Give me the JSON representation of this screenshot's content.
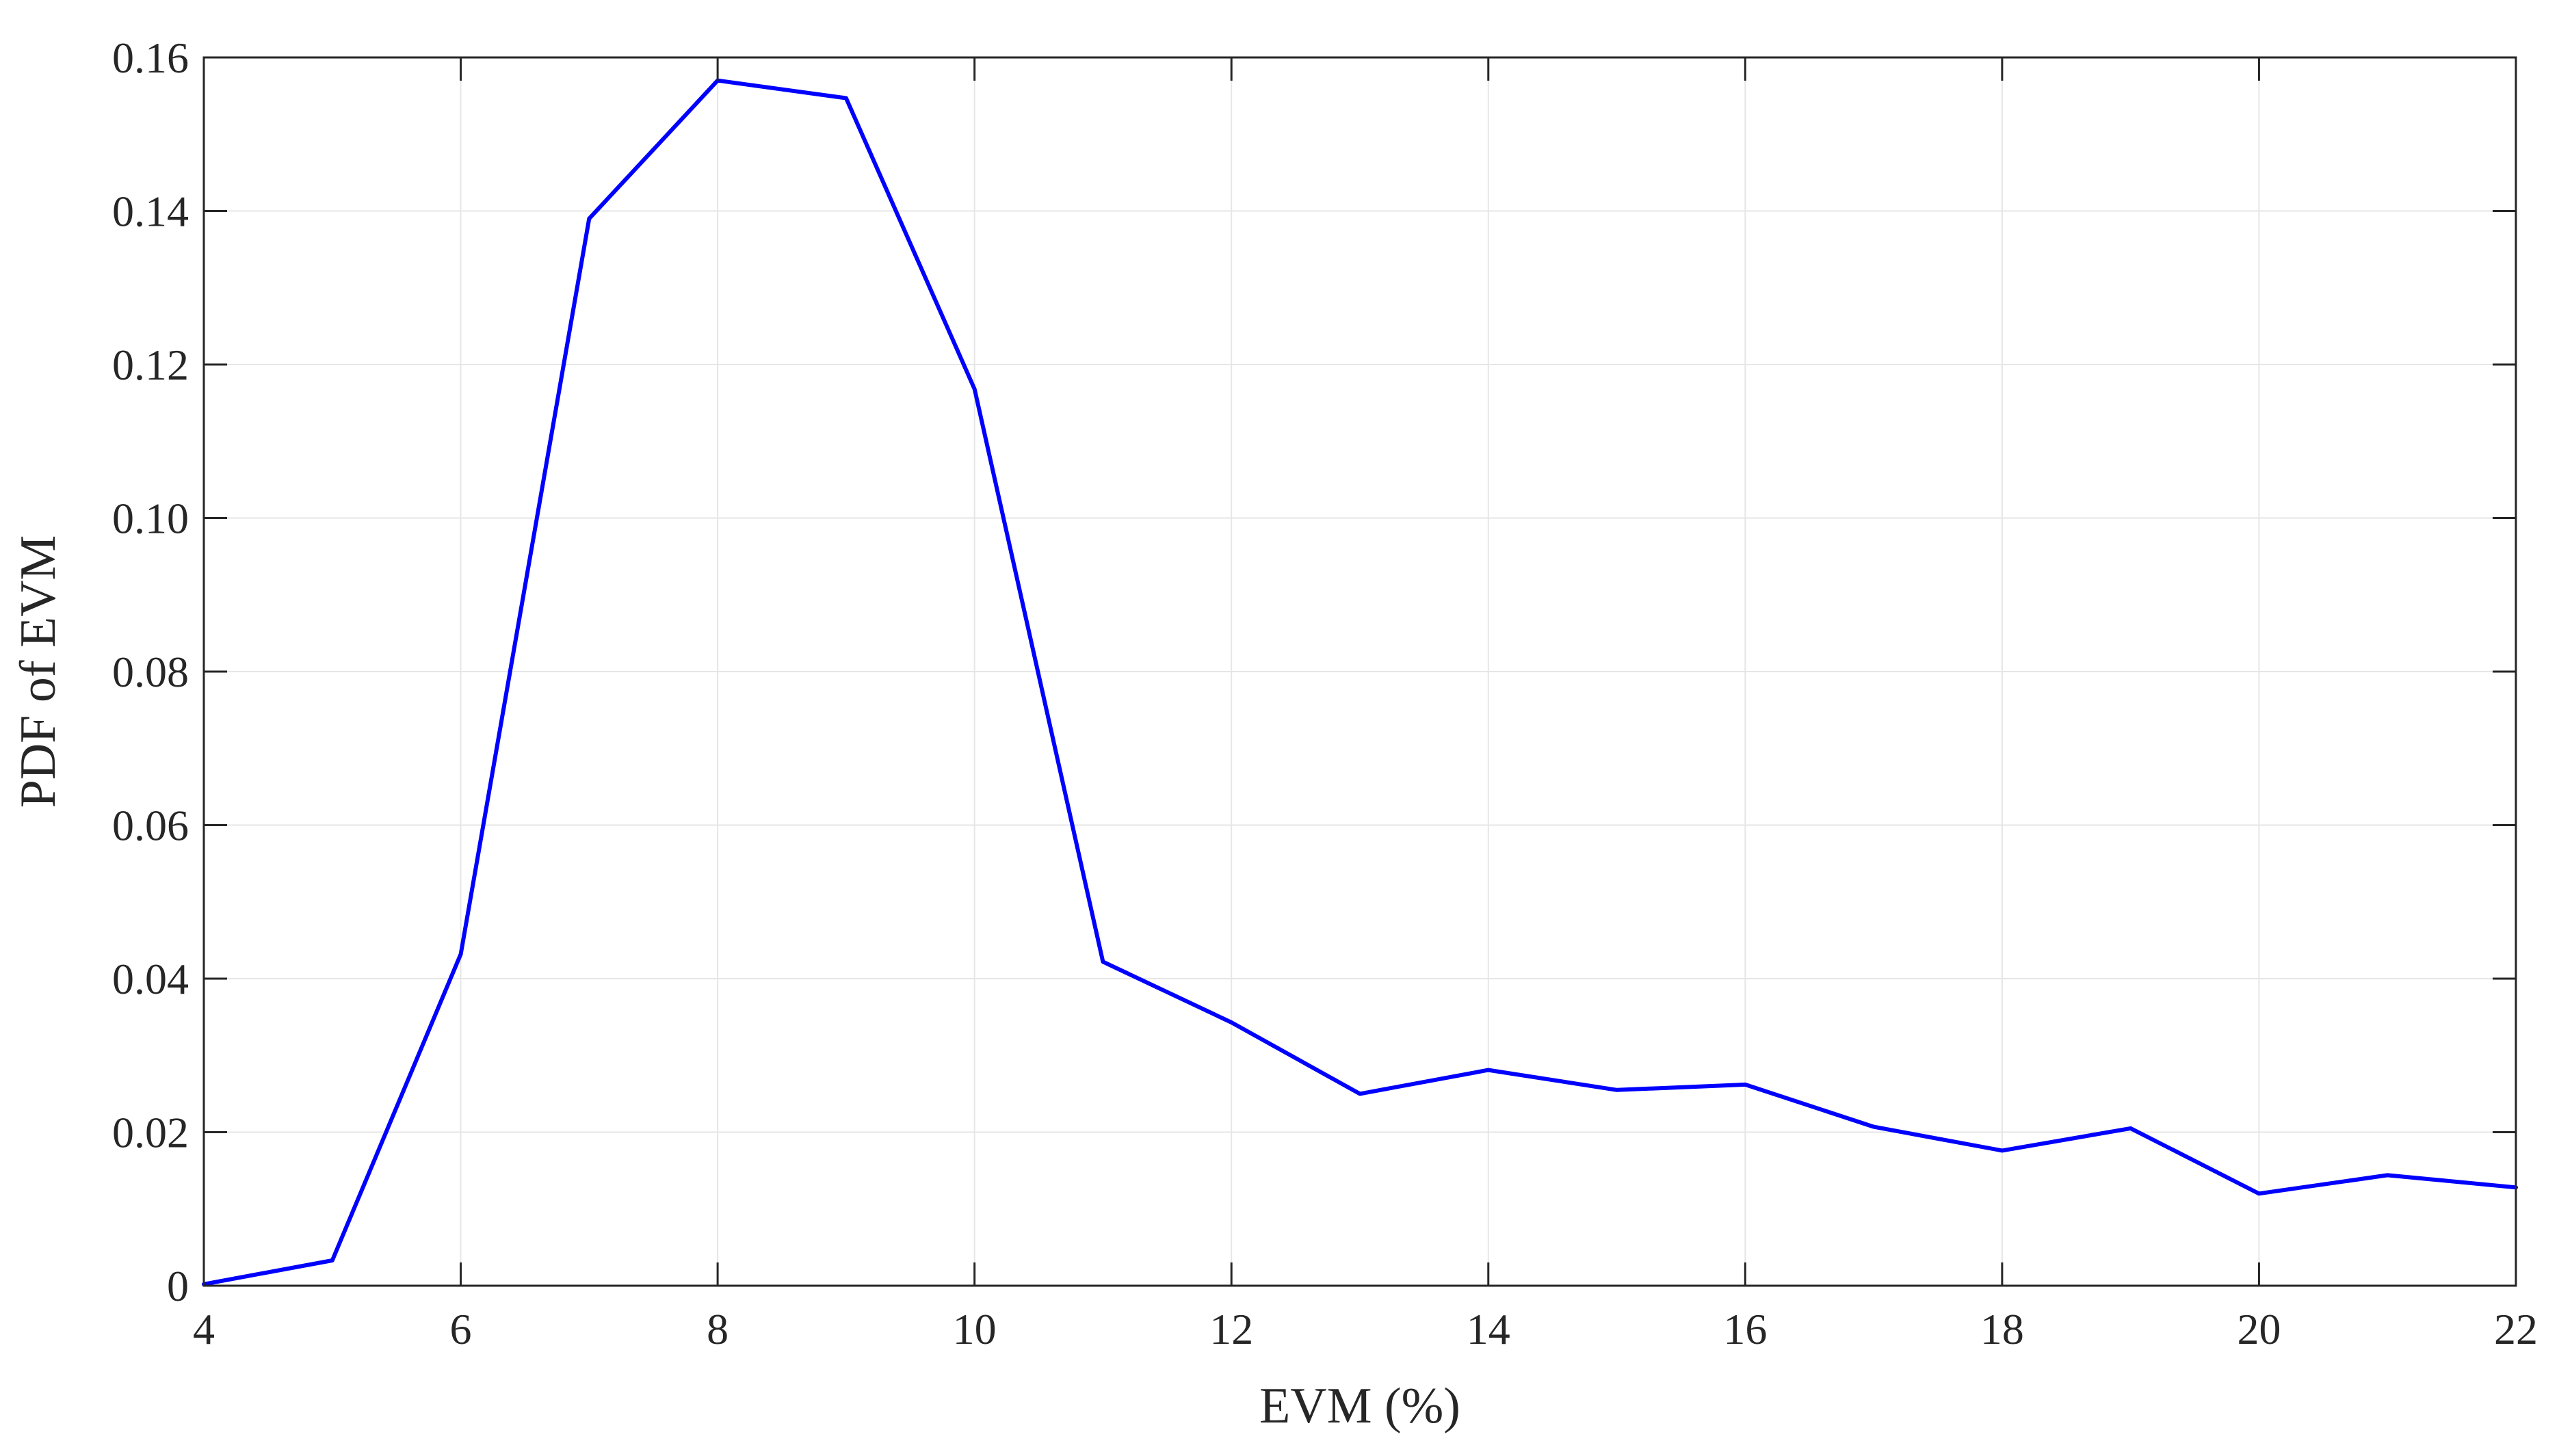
{
  "colors": {
    "series": "#0000ff",
    "axis": "#262626",
    "grid": "#e6e6e6",
    "background": "#ffffff"
  },
  "chart_data": {
    "type": "line",
    "title": "",
    "xlabel": "EVM (%)",
    "ylabel": "PDF of EVM",
    "xlim": [
      4,
      22
    ],
    "ylim": [
      0,
      0.16
    ],
    "grid": true,
    "box": true,
    "xticks": [
      4,
      6,
      8,
      10,
      12,
      14,
      16,
      18,
      20,
      22
    ],
    "xtick_labels": [
      "4",
      "6",
      "8",
      "10",
      "12",
      "14",
      "16",
      "18",
      "20",
      "22"
    ],
    "yticks": [
      0,
      0.02,
      0.04,
      0.06,
      0.08,
      0.1,
      0.12,
      0.14,
      0.16
    ],
    "ytick_labels": [
      "0",
      "0.02",
      "0.04",
      "0.06",
      "0.08",
      "0.10",
      "0.12",
      "0.14",
      "0.16"
    ],
    "series": [
      {
        "color": "#0000ff",
        "x": [
          4,
          5,
          6,
          7,
          8,
          9,
          10,
          11,
          12,
          13,
          14,
          15,
          16,
          17,
          18,
          19,
          20,
          21,
          22
        ],
        "y": [
          0.0002,
          0.0033,
          0.0432,
          0.139,
          0.157,
          0.1547,
          0.1168,
          0.0422,
          0.0343,
          0.025,
          0.0281,
          0.0255,
          0.0262,
          0.0207,
          0.0176,
          0.0205,
          0.012,
          0.0144,
          0.0128
        ]
      }
    ]
  }
}
